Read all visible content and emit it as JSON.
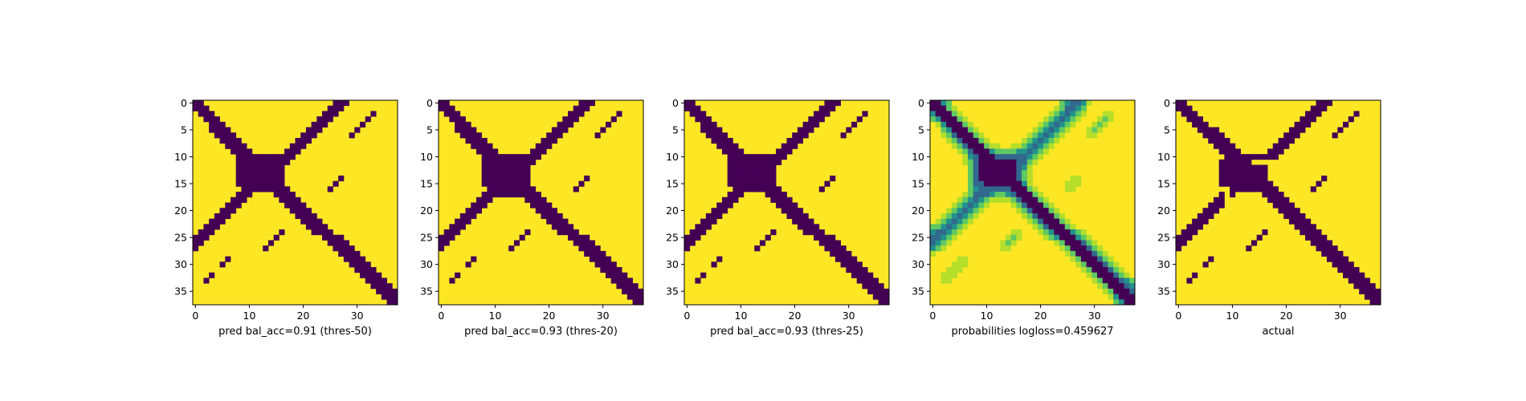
{
  "colors": {
    "dark": "#440154",
    "light": "#fde725",
    "mid_low": "#31688e",
    "mid": "#21918c",
    "mid_high": "#5ec962",
    "high": "#b5de2b"
  },
  "chart_data": [
    {
      "type": "heatmap",
      "xlabel": "pred bal_acc=0.91 (thres-50)",
      "grid_size": 38,
      "xlim": [
        0,
        37
      ],
      "ylim": [
        37,
        0
      ],
      "x_ticks": [
        0,
        10,
        20,
        30
      ],
      "y_ticks": [
        0,
        5,
        10,
        15,
        20,
        25,
        30,
        35
      ],
      "values_description_rows": [
        "                          ###         ",
        "#                        ###          ",
        "##                      ###    #      ",
        "###                     ##    #       ",
        " ####   #              ##    #        ",
        "  #######             ###             ",
        "    ######           ###              ",
        "      #####         ###               ",
        "       #####     #####                ",
        "         ######## ###                 ",
        "          ########                    ",
        "        #########                     ",
        "         ########                     ",
        "          ########                    ",
        "          #######             #       ",
        "         #   #####           #        ",
        "        #      ###                    ",
        "        #       ###                   ",
        "                 ####                 ",
        "        #         ####                ",
        "      ###           ####              ",
        "     ####            ####             ",
        "   #####              ####            ",
        "  #####                ####           ",
        " ####                   ####          ",
        "####          #          ####         ",
        "###          #            ####        ",
        "#           #              ####       ",
        "#           #               ####      ",
        "      #                      ####     ",
        "     #                        ####    ",
        "                                ####  ",
        "   #                            ####  ",
        "  #                              #### ",
        "                                  ####",
        "                                  ####",
        "                                   ###",
        "                                   ###"
      ]
    },
    {
      "type": "heatmap",
      "xlabel": "pred bal_acc=0.93 (thres-20)",
      "grid_size": 38,
      "x_ticks": [
        0,
        10,
        20,
        30
      ],
      "y_ticks": [
        0,
        5,
        10,
        15,
        20,
        25,
        30,
        35
      ]
    },
    {
      "type": "heatmap",
      "xlabel": "pred bal_acc=0.93 (thres-25)",
      "grid_size": 38,
      "x_ticks": [
        0,
        10,
        20,
        30
      ],
      "y_ticks": [
        0,
        5,
        10,
        15,
        20,
        25,
        30,
        35
      ]
    },
    {
      "type": "heatmap",
      "xlabel": "probabilities logloss=0.459627",
      "grid_size": 38,
      "x_ticks": [
        0,
        10,
        20,
        30
      ],
      "y_ticks": [
        0,
        5,
        10,
        15,
        20,
        25,
        30,
        35
      ]
    },
    {
      "type": "heatmap",
      "xlabel": "actual",
      "grid_size": 38,
      "x_ticks": [
        0,
        10,
        20,
        30
      ],
      "y_ticks": [
        0,
        5,
        10,
        15,
        20,
        25,
        30,
        35
      ]
    }
  ]
}
